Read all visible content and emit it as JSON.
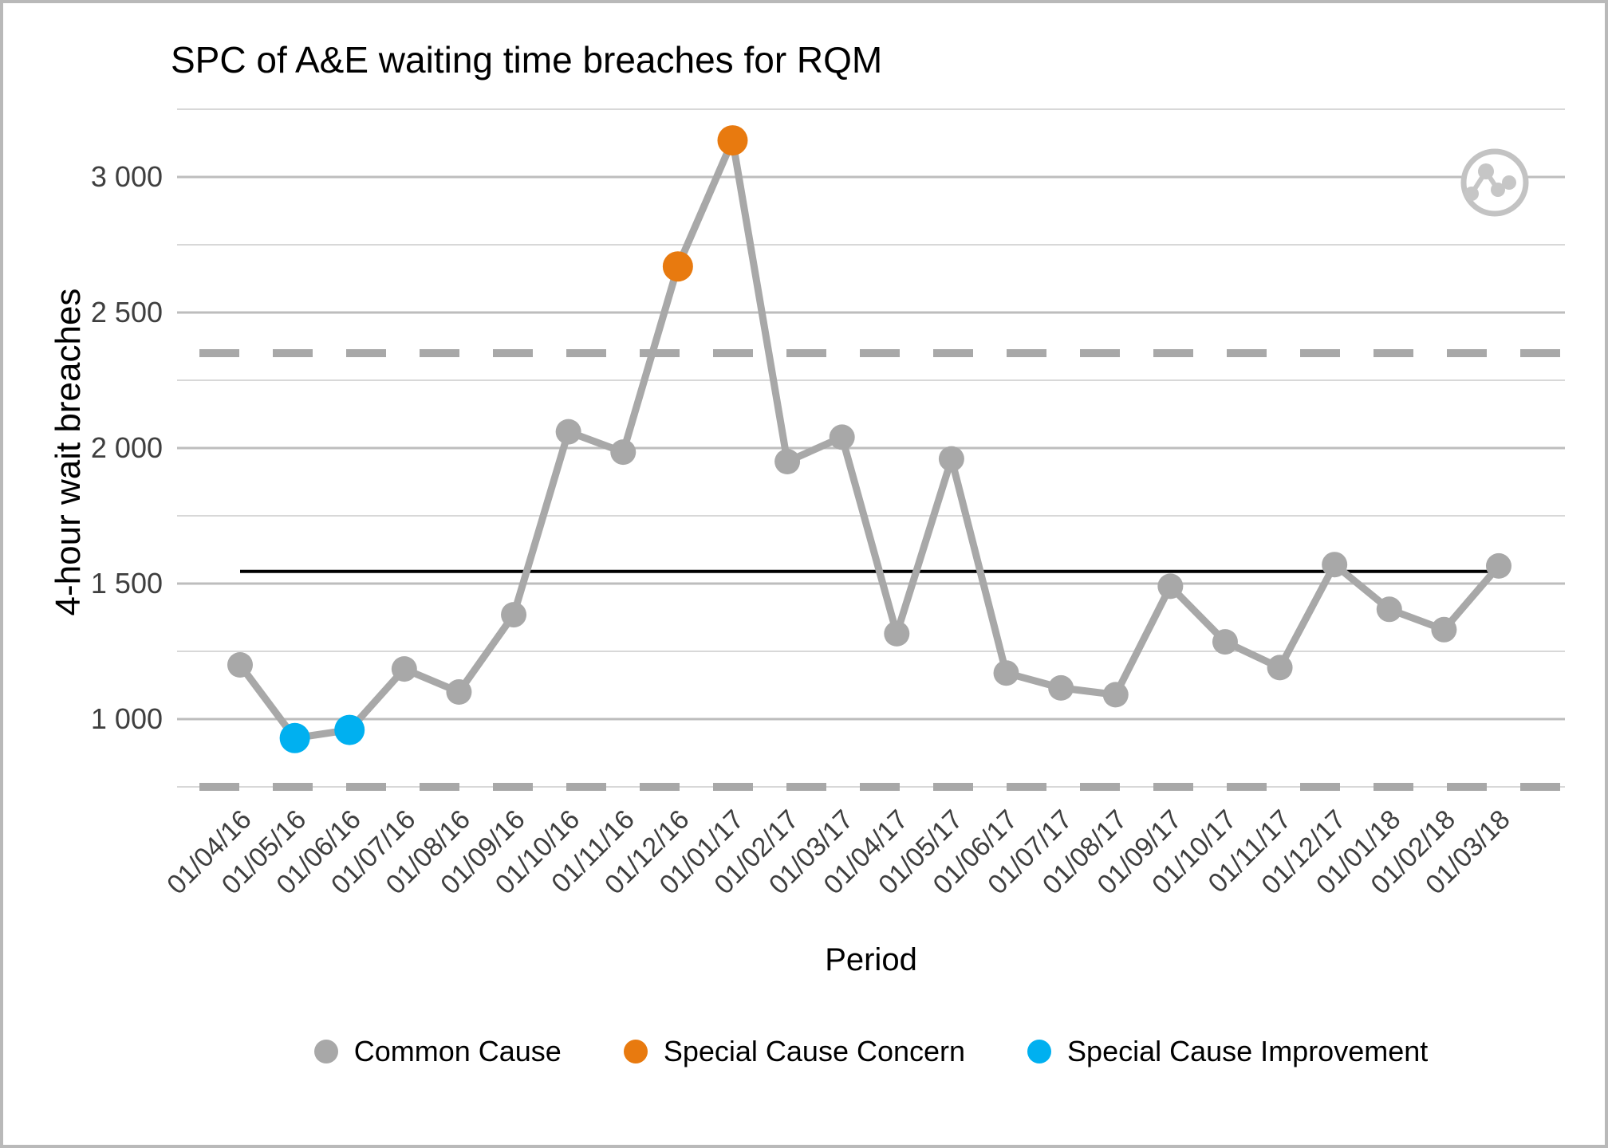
{
  "title": "SPC of A&E waiting time breaches for RQM",
  "y_axis": {
    "title": "4-hour wait breaches",
    "ticks": [
      {
        "value": 3000,
        "label": "3 000"
      },
      {
        "value": 2500,
        "label": "2 500"
      },
      {
        "value": 2000,
        "label": "2 000"
      },
      {
        "value": 1500,
        "label": "1 500"
      },
      {
        "value": 1000,
        "label": "1 000"
      }
    ]
  },
  "x_axis": {
    "title": "Period"
  },
  "legend": [
    {
      "key": "common",
      "label": "Common Cause",
      "color": "#a8a8a8"
    },
    {
      "key": "concern",
      "label": "Special Cause Concern",
      "color": "#e87a0f"
    },
    {
      "key": "improvement",
      "label": "Special Cause Improvement",
      "color": "#00b0f0"
    }
  ],
  "logo_icon": "line-chart-logo",
  "chart_data": {
    "type": "line",
    "title": "SPC of A&E waiting time breaches for RQM",
    "xlabel": "Period",
    "ylabel": "4-hour wait breaches",
    "x": [
      "01/04/16",
      "01/05/16",
      "01/06/16",
      "01/07/16",
      "01/08/16",
      "01/09/16",
      "01/10/16",
      "01/11/16",
      "01/12/16",
      "01/01/17",
      "01/02/17",
      "01/03/17",
      "01/04/17",
      "01/05/17",
      "01/06/17",
      "01/07/17",
      "01/08/17",
      "01/09/17",
      "01/10/17",
      "01/11/17",
      "01/12/17",
      "01/01/18",
      "01/02/18",
      "01/03/18"
    ],
    "values": [
      1200,
      930,
      960,
      1185,
      1100,
      1385,
      2060,
      1985,
      2670,
      3135,
      1950,
      2040,
      1315,
      1960,
      1170,
      1115,
      1090,
      1490,
      1285,
      1190,
      1570,
      1405,
      1330,
      1565
    ],
    "point_types": [
      "common",
      "improvement",
      "improvement",
      "common",
      "common",
      "common",
      "common",
      "common",
      "concern",
      "concern",
      "common",
      "common",
      "common",
      "common",
      "common",
      "common",
      "common",
      "common",
      "common",
      "common",
      "common",
      "common",
      "common",
      "common"
    ],
    "mean": 1545,
    "upper_control_limit": 2350,
    "lower_control_limit": 750,
    "ylim": [
      700,
      3250
    ],
    "gridlines": {
      "major": [
        3000,
        2500,
        2000,
        1500,
        1000
      ],
      "minor": [
        3250,
        2750,
        2250,
        1750,
        1250,
        750
      ]
    },
    "legend_position": "bottom",
    "grid": true,
    "colors": {
      "common": "#a8a8a8",
      "concern": "#e87a0f",
      "improvement": "#00b0f0",
      "series_line": "#a8a8a8",
      "mean_line": "#000000",
      "limit_line": "#a8a8a8",
      "gridline_major": "#bdbdbd",
      "gridline_minor": "#d8d8d8",
      "tick_text": "#3f3f3f"
    }
  }
}
